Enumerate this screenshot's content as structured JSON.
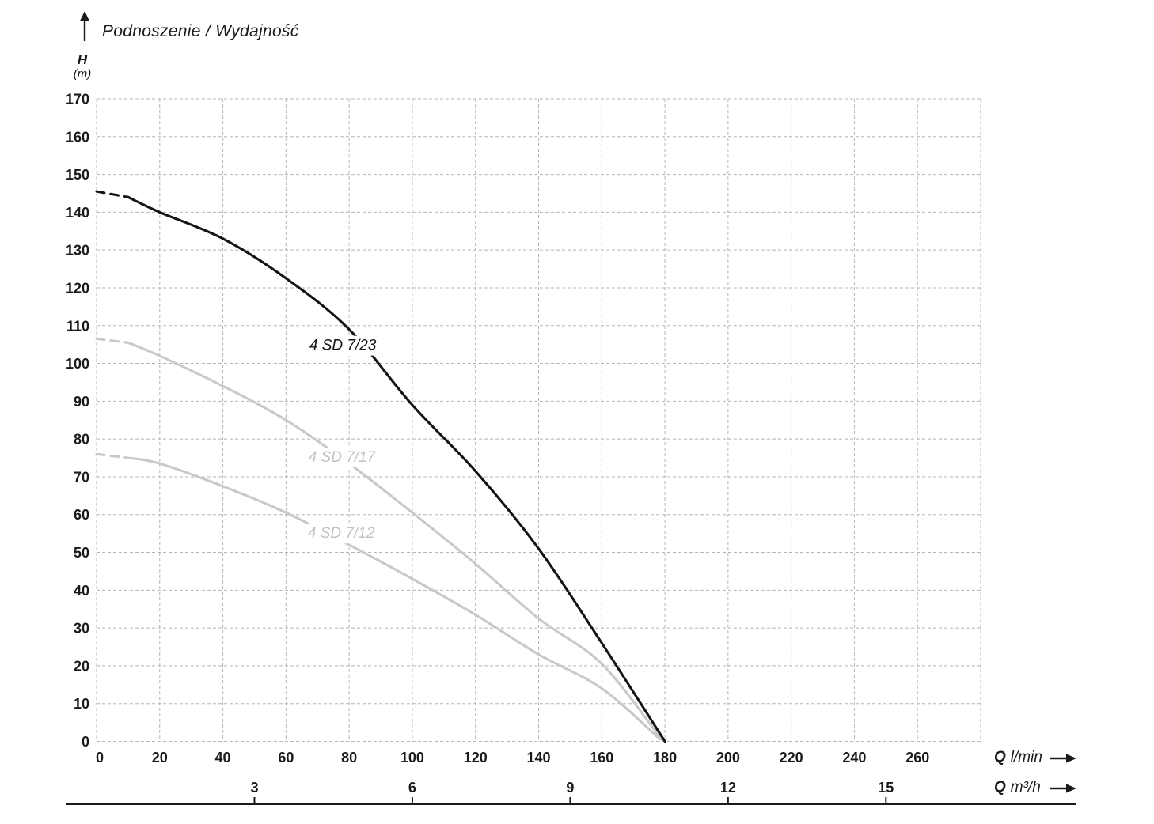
{
  "title": {
    "text": "Podnoszenie / Wydajność"
  },
  "y_axis": {
    "symbol": "H",
    "unit": "(m)",
    "ticks": [
      0,
      10,
      20,
      30,
      40,
      50,
      60,
      70,
      80,
      90,
      100,
      110,
      120,
      130,
      140,
      150,
      160,
      170
    ]
  },
  "x_axis_lmin": {
    "symbol": "Q",
    "unit": "l/min",
    "ticks": [
      0,
      20,
      40,
      60,
      80,
      100,
      120,
      140,
      160,
      180,
      200,
      220,
      240,
      260
    ]
  },
  "x_axis_m3h": {
    "symbol": "Q",
    "unit": "m³/h",
    "ticks": [
      3,
      6,
      9,
      12,
      15
    ]
  },
  "colors": {
    "text": "#1a1a1a",
    "grid": "#b5b5b5",
    "curve_dark": "#141414",
    "curve_light": "#c9c9cb",
    "label_light": "#c2c2c5",
    "axis_line": "#1a1a1a"
  },
  "chart_data": {
    "type": "line",
    "title": "Podnoszenie / Wydajność",
    "ylabel": "H (m)",
    "xlabel": "Q (l/min)",
    "x2label": "Q (m³/h)",
    "xlim": [
      0,
      280
    ],
    "ylim": [
      0,
      170
    ],
    "x_grid_step": 20,
    "y_grid_step": 10,
    "grid": "dashed",
    "lmin_per_m3h": 16.6667,
    "series": [
      {
        "name": "4 SD 7/12",
        "color": "#c9c9cb",
        "dashed_points": [
          [
            0,
            76
          ],
          [
            10,
            75
          ]
        ],
        "points": [
          [
            10,
            75
          ],
          [
            20,
            73.5
          ],
          [
            40,
            67.5
          ],
          [
            60,
            60.5
          ],
          [
            80,
            52
          ],
          [
            100,
            43
          ],
          [
            120,
            33.5
          ],
          [
            140,
            23
          ],
          [
            160,
            14
          ],
          [
            178.5,
            0.5
          ]
        ]
      },
      {
        "name": "4 SD 7/17",
        "color": "#c9c9cb",
        "dashed_points": [
          [
            0,
            106.5
          ],
          [
            10,
            105.5
          ]
        ],
        "points": [
          [
            10,
            105.5
          ],
          [
            20,
            102
          ],
          [
            40,
            94
          ],
          [
            60,
            85
          ],
          [
            80,
            73.5
          ],
          [
            100,
            60.5
          ],
          [
            120,
            47
          ],
          [
            140,
            32.5
          ],
          [
            160,
            20.5
          ],
          [
            179,
            0.5
          ]
        ]
      },
      {
        "name": "4 SD 7/23",
        "color": "#141414",
        "dashed_points": [
          [
            0,
            145.5
          ],
          [
            10,
            144
          ]
        ],
        "points": [
          [
            10,
            144
          ],
          [
            20,
            140
          ],
          [
            40,
            133
          ],
          [
            60,
            122.5
          ],
          [
            80,
            109
          ],
          [
            100,
            89
          ],
          [
            120,
            71.5
          ],
          [
            140,
            51
          ],
          [
            160,
            26
          ],
          [
            180,
            0
          ]
        ]
      }
    ],
    "curve_labels": [
      {
        "text": "4 SD 7/23",
        "q": 78,
        "h": 105,
        "color": "#141414"
      },
      {
        "text": "4 SD 7/17",
        "q": 77.7,
        "h": 75.4,
        "color": "#c2c2c5"
      },
      {
        "text": "4 SD 7/12",
        "q": 77.5,
        "h": 55.3,
        "color": "#c2c2c5"
      }
    ]
  }
}
